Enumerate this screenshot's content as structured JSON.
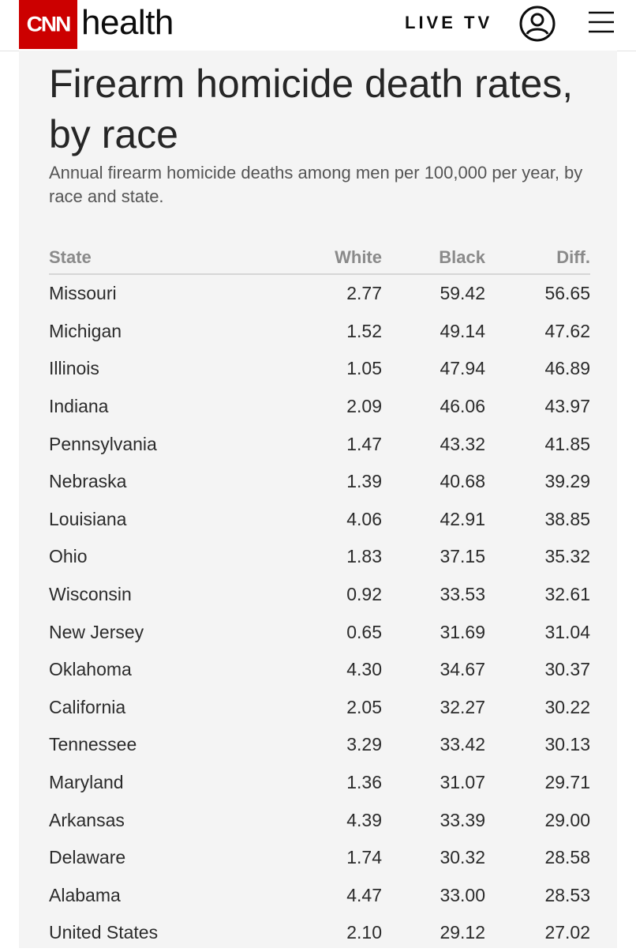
{
  "header": {
    "logo_text": "CNN",
    "section_name": "health",
    "live_tv_label": "LIVE TV",
    "account_icon": "user-circle-icon",
    "menu_icon": "hamburger-menu-icon",
    "brand_color": "#cc0000"
  },
  "article": {
    "title": "Firearm homicide death rates, by race",
    "subtitle": "Annual firearm homicide deaths among men per 100,000 per year, by race and state."
  },
  "table": {
    "headers": [
      "State",
      "White",
      "Black",
      "Diff."
    ],
    "rows": [
      {
        "state": "Missouri",
        "white": "2.77",
        "black": "59.42",
        "diff": "56.65"
      },
      {
        "state": "Michigan",
        "white": "1.52",
        "black": "49.14",
        "diff": "47.62"
      },
      {
        "state": "Illinois",
        "white": "1.05",
        "black": "47.94",
        "diff": "46.89"
      },
      {
        "state": "Indiana",
        "white": "2.09",
        "black": "46.06",
        "diff": "43.97"
      },
      {
        "state": "Pennsylvania",
        "white": "1.47",
        "black": "43.32",
        "diff": "41.85"
      },
      {
        "state": "Nebraska",
        "white": "1.39",
        "black": "40.68",
        "diff": "39.29"
      },
      {
        "state": "Louisiana",
        "white": "4.06",
        "black": "42.91",
        "diff": "38.85"
      },
      {
        "state": "Ohio",
        "white": "1.83",
        "black": "37.15",
        "diff": "35.32"
      },
      {
        "state": "Wisconsin",
        "white": "0.92",
        "black": "33.53",
        "diff": "32.61"
      },
      {
        "state": "New Jersey",
        "white": "0.65",
        "black": "31.69",
        "diff": "31.04"
      },
      {
        "state": "Oklahoma",
        "white": "4.30",
        "black": "34.67",
        "diff": "30.37"
      },
      {
        "state": "California",
        "white": "2.05",
        "black": "32.27",
        "diff": "30.22"
      },
      {
        "state": "Tennessee",
        "white": "3.29",
        "black": "33.42",
        "diff": "30.13"
      },
      {
        "state": "Maryland",
        "white": "1.36",
        "black": "31.07",
        "diff": "29.71"
      },
      {
        "state": "Arkansas",
        "white": "4.39",
        "black": "33.39",
        "diff": "29.00"
      },
      {
        "state": "Delaware",
        "white": "1.74",
        "black": "30.32",
        "diff": "28.58"
      },
      {
        "state": "Alabama",
        "white": "4.47",
        "black": "33.00",
        "diff": "28.53"
      },
      {
        "state": "United States",
        "white": "2.10",
        "black": "29.12",
        "diff": "27.02"
      }
    ]
  }
}
